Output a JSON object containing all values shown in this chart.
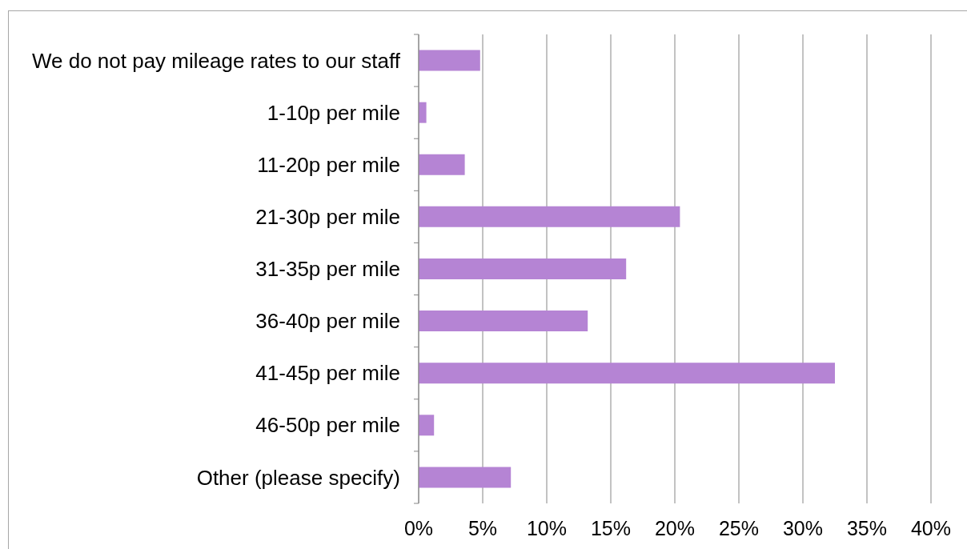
{
  "chart_data": {
    "type": "bar",
    "orientation": "horizontal",
    "categories": [
      "We do not pay mileage rates to our staff",
      "1-10p per mile",
      "11-20p per mile",
      "21-30p per mile",
      "31-35p per mile",
      "36-40p per mile",
      "41-45p per mile",
      "46-50p per mile",
      "Other (please specify)"
    ],
    "values": [
      4.8,
      0.6,
      3.6,
      20.4,
      16.2,
      13.2,
      32.5,
      1.2,
      7.2
    ],
    "color": "#b584d4",
    "xlim": [
      0,
      40
    ],
    "xticks": [
      {
        "value": 0,
        "label": "0%"
      },
      {
        "value": 5,
        "label": "5%"
      },
      {
        "value": 10,
        "label": "10%"
      },
      {
        "value": 15,
        "label": "15%"
      },
      {
        "value": 20,
        "label": "20%"
      },
      {
        "value": 25,
        "label": "25%"
      },
      {
        "value": 30,
        "label": "30%"
      },
      {
        "value": 35,
        "label": "35%"
      },
      {
        "value": 40,
        "label": "40%"
      }
    ],
    "grid": "x"
  }
}
